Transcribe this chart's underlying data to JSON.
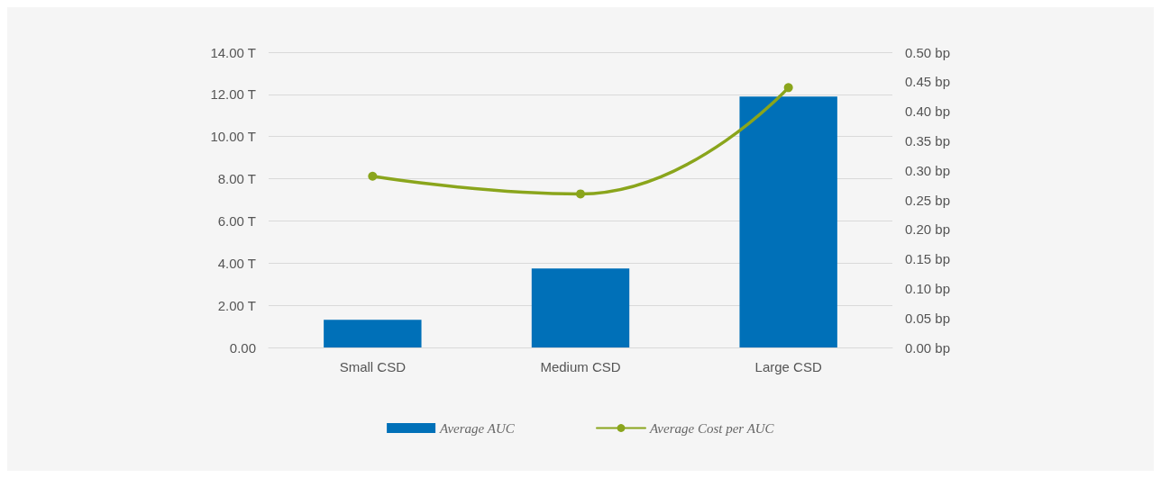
{
  "chart_data": {
    "type": "bar",
    "categories": [
      "Small CSD",
      "Medium CSD",
      "Large CSD"
    ],
    "series": [
      {
        "name": "Average AUC",
        "color": "#0070b8",
        "values": [
          1.31,
          3.75,
          11.9
        ]
      },
      {
        "name": "Average Cost per AUC",
        "type": "line",
        "axis": "y2",
        "color": "#8aa51c",
        "marker": "circle",
        "values": [
          0.29,
          0.26,
          0.44
        ]
      }
    ],
    "ylim": [
      0,
      14
    ],
    "yticks": [
      {
        "value": 0,
        "label": "0.00"
      },
      {
        "value": 2,
        "label": "2.00 T"
      },
      {
        "value": 4,
        "label": "4.00 T"
      },
      {
        "value": 6,
        "label": "6.00 T"
      },
      {
        "value": 8,
        "label": "8.00 T"
      },
      {
        "value": 10,
        "label": "10.00 T"
      },
      {
        "value": 12,
        "label": "12.00 T"
      },
      {
        "value": 14,
        "label": "14.00 T"
      }
    ],
    "y2lim": [
      0,
      0.5
    ],
    "y2ticks": [
      {
        "value": 0,
        "label": "0.00 bp"
      },
      {
        "value": 0.05,
        "label": "0.05 bp"
      },
      {
        "value": 0.1,
        "label": "0.10 bp"
      },
      {
        "value": 0.15,
        "label": "0.15 bp"
      },
      {
        "value": 0.2,
        "label": "0.20 bp"
      },
      {
        "value": 0.25,
        "label": "0.25 bp"
      },
      {
        "value": 0.3,
        "label": "0.30 bp"
      },
      {
        "value": 0.35,
        "label": "0.35 bp"
      },
      {
        "value": 0.4,
        "label": "0.40 bp"
      },
      {
        "value": 0.45,
        "label": "0.45 bp"
      },
      {
        "value": 0.5,
        "label": "0.50 bp"
      }
    ],
    "grid": "y",
    "legend": "bottom"
  }
}
